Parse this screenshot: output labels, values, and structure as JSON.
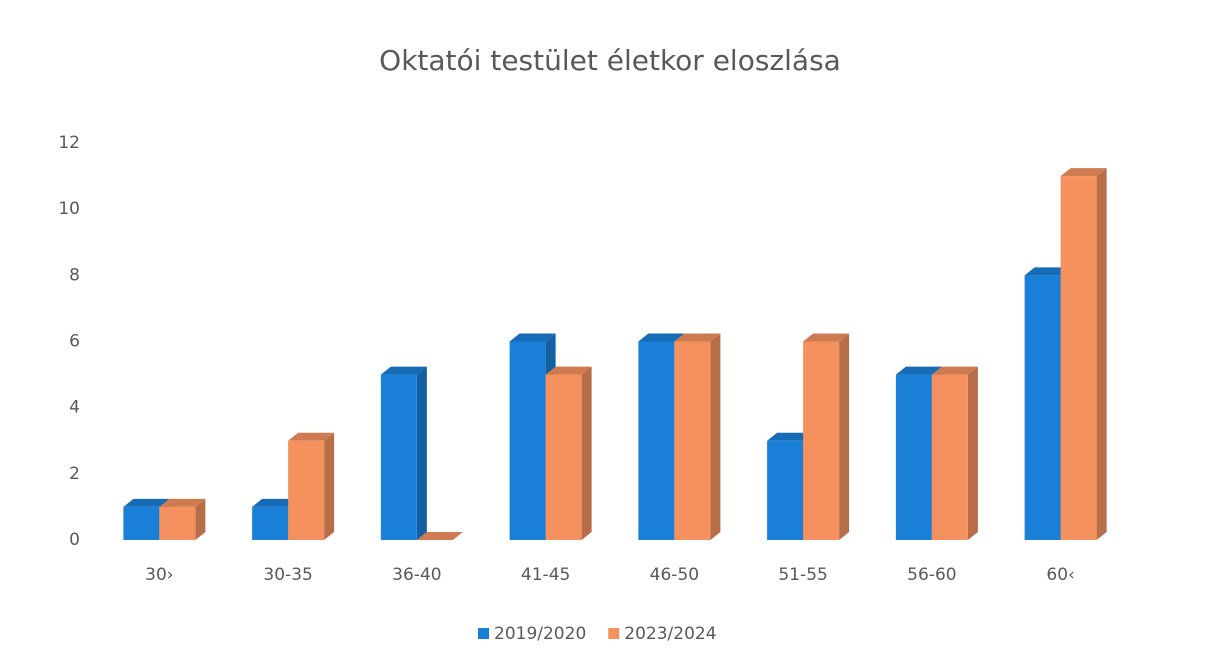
{
  "chart_data": {
    "type": "bar3d",
    "title": "Oktatói testület életkor eloszlása",
    "categories": [
      "30›",
      "30-35",
      "36-40",
      "41-45",
      "46-50",
      "51-55",
      "56-60",
      "60‹"
    ],
    "series": [
      {
        "name": "2019/2020",
        "color": "#1a7fd6",
        "values": [
          1,
          1,
          5,
          6,
          6,
          3,
          5,
          8
        ]
      },
      {
        "name": "2023/2024",
        "color": "#f4915e",
        "values": [
          1,
          3,
          0,
          5,
          6,
          6,
          5,
          11
        ]
      }
    ],
    "ylim": [
      0,
      12
    ],
    "yticks": [
      0,
      2,
      4,
      6,
      8,
      10,
      12
    ],
    "grid": false,
    "legend": "bottom"
  }
}
